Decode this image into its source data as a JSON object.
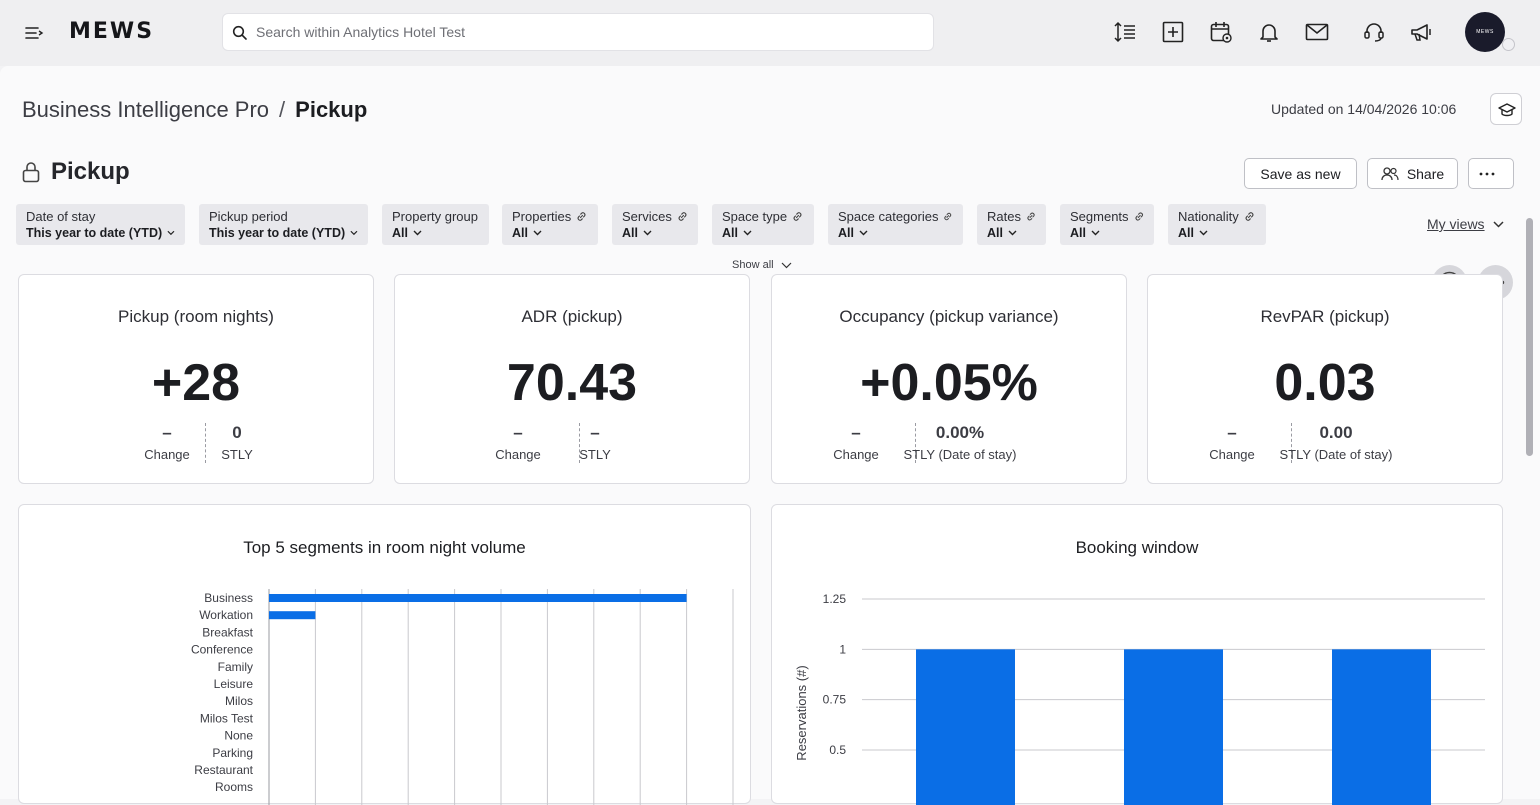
{
  "app": {
    "logo": "MEWS",
    "avatar_text": "MEWS"
  },
  "search": {
    "placeholder": "Search within Analytics Hotel Test"
  },
  "breadcrumb": {
    "parent": "Business Intelligence Pro",
    "separator": "/",
    "current": "Pickup"
  },
  "updated": "Updated on 14/04/2026 10:06",
  "dashboard": {
    "title": "Pickup"
  },
  "actions": {
    "save_as_new": "Save as new",
    "share": "Share"
  },
  "filters": [
    {
      "label": "Date of stay",
      "value": "This year to date (YTD)",
      "linked": false
    },
    {
      "label": "Pickup period",
      "value": "This year to date (YTD)",
      "linked": false
    },
    {
      "label": "Property group",
      "value": "All",
      "linked": false
    },
    {
      "label": "Properties",
      "value": "All",
      "linked": true
    },
    {
      "label": "Services",
      "value": "All",
      "linked": true
    },
    {
      "label": "Space type",
      "value": "All",
      "linked": true
    },
    {
      "label": "Space categories",
      "value": "All",
      "linked": true
    },
    {
      "label": "Rates",
      "value": "All",
      "linked": true
    },
    {
      "label": "Segments",
      "value": "All",
      "linked": true
    },
    {
      "label": "Nationality",
      "value": "All",
      "linked": true
    }
  ],
  "my_views": "My views",
  "show_all": "Show all",
  "kpis": [
    {
      "title": "Pickup (room nights)",
      "value": "+28",
      "change_value": "–",
      "change_label": "Change",
      "stly_value": "0",
      "stly_label": "STLY"
    },
    {
      "title": "ADR (pickup)",
      "value": "70.43",
      "change_value": "–",
      "change_label": "Change",
      "stly_value": "–",
      "stly_label": "STLY"
    },
    {
      "title": "Occupancy (pickup variance)",
      "value": "+0.05%",
      "change_value": "–",
      "change_label": "Change",
      "stly_value": "0.00%",
      "stly_label": "STLY (Date of stay)"
    },
    {
      "title": "RevPAR (pickup)",
      "value": "0.03",
      "change_value": "–",
      "change_label": "Change",
      "stly_value": "0.00",
      "stly_label": "STLY (Date of stay)"
    }
  ],
  "chart_data": [
    {
      "type": "bar",
      "orientation": "horizontal",
      "title": "Top 5 segments in room night volume",
      "categories": [
        "Business",
        "Workation",
        "Breakfast",
        "Conference",
        "Family",
        "Leisure",
        "Milos",
        "Milos Test",
        "None",
        "Parking",
        "Restaurant",
        "Rooms"
      ],
      "values": [
        27,
        3,
        0,
        0,
        0,
        0,
        0,
        0,
        0,
        0,
        0,
        0
      ],
      "xlim": [
        0,
        30
      ],
      "grid": true,
      "color": "#0a6ee6"
    },
    {
      "type": "bar",
      "title": "Booking window",
      "ylabel": "Reservations (#)",
      "yticks": [
        "1.25",
        "1",
        "0.75",
        "0.5"
      ],
      "values": [
        1,
        1,
        1
      ],
      "ylim": [
        0,
        1.25
      ],
      "grid": true,
      "color": "#0a6ee6"
    }
  ]
}
